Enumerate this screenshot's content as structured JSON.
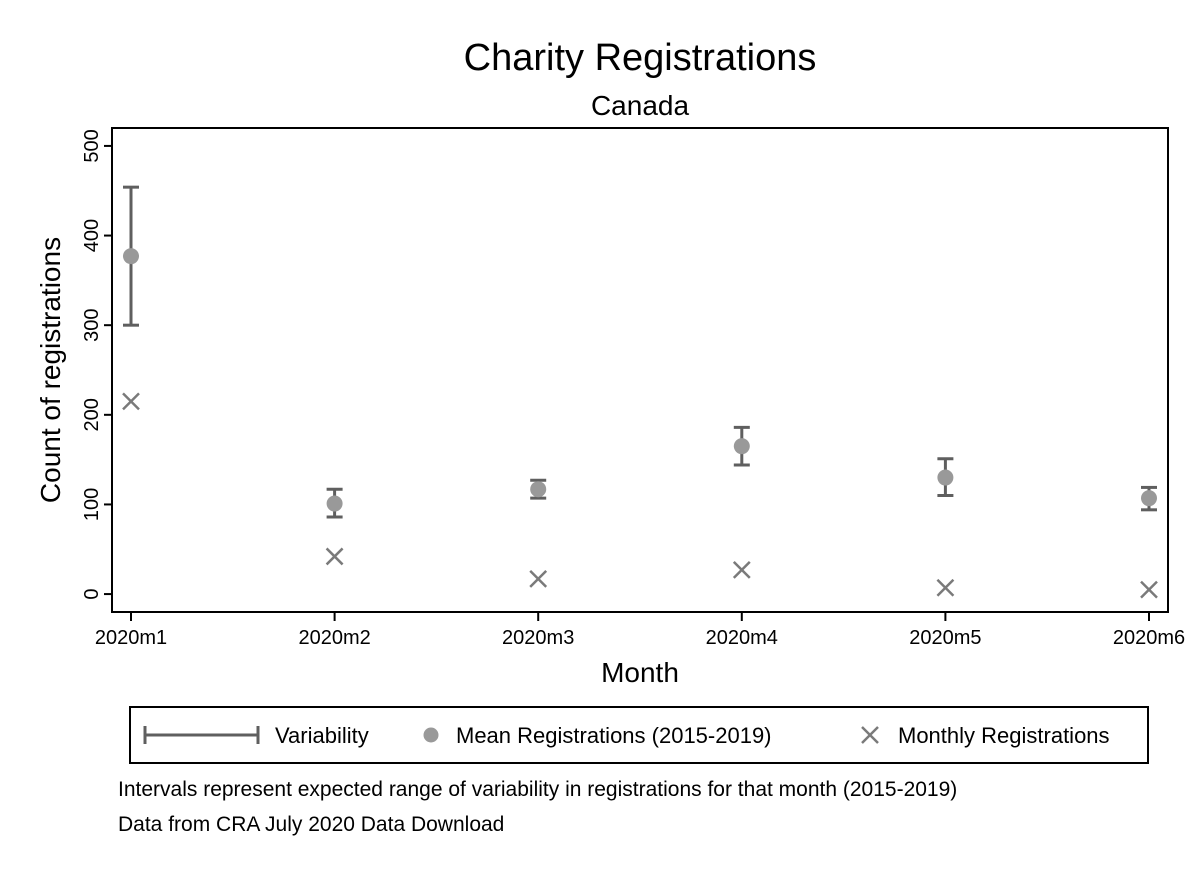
{
  "chart_data": {
    "type": "scatter",
    "title": "Charity Registrations",
    "subtitle": "Canada",
    "xlabel": "Month",
    "ylabel": "Count of registrations",
    "categories": [
      "2020m1",
      "2020m2",
      "2020m3",
      "2020m4",
      "2020m5",
      "2020m6"
    ],
    "yticks": [
      0,
      100,
      200,
      300,
      400,
      500
    ],
    "ylim": [
      -20,
      520
    ],
    "grid": false,
    "legend_position": "bottom",
    "series": [
      {
        "name": "Variability",
        "kind": "range",
        "low": [
          300,
          86,
          107,
          144,
          110,
          94
        ],
        "high": [
          454,
          117,
          127,
          186,
          151,
          119
        ]
      },
      {
        "name": "Mean Registrations (2015-2019)",
        "kind": "point",
        "values": [
          377,
          101,
          117,
          165,
          130,
          107
        ]
      },
      {
        "name": "Monthly Registrations",
        "kind": "point",
        "values": [
          215,
          42,
          17,
          27,
          7,
          5
        ]
      }
    ],
    "notes": [
      "Intervals represent expected range of variability in registrations for that month (2015-2019)",
      "Data from CRA July 2020 Data Download"
    ],
    "colors": {
      "range": "#5f5f5f",
      "mean": "#999999",
      "monthly": "#7a7a7a",
      "frame": "#000000"
    }
  }
}
